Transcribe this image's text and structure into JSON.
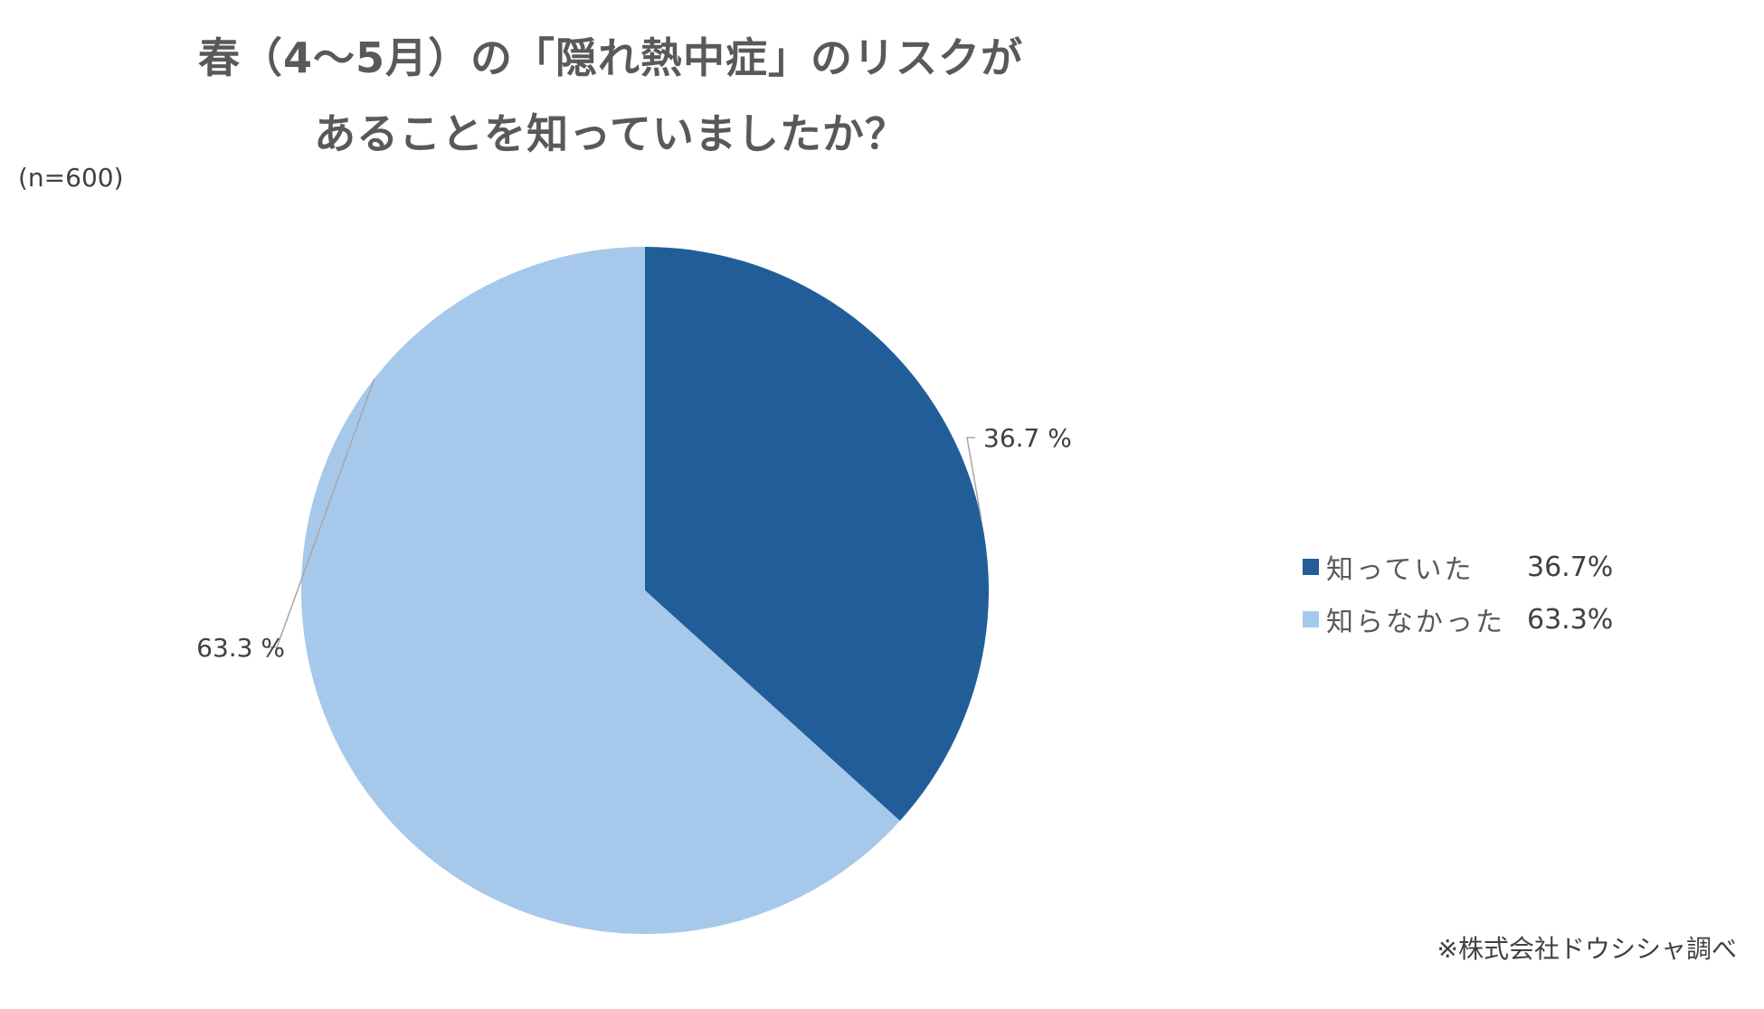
{
  "header": {
    "title_line1": "春（4〜5月）の「隠れ熱中症」のリスクが",
    "title_line2": "あることを知っていましたか？",
    "sample_size": "(n=600)"
  },
  "chart_data": {
    "type": "pie",
    "title": "春（4〜5月）の「隠れ熱中症」のリスクが あることを知っていましたか？",
    "slices": [
      {
        "label": "知っていた",
        "value": 36.7,
        "color": "#215e99",
        "data_label": "36.7 %",
        "legend_value": "36.7%"
      },
      {
        "label": "知らなかった",
        "value": 63.3,
        "color": "#a6c8eb",
        "data_label": "63.3 %",
        "legend_value": "63.3%"
      }
    ],
    "legend_position": "right"
  },
  "footer": {
    "source": "※株式会社ドウシシャ調べ"
  }
}
